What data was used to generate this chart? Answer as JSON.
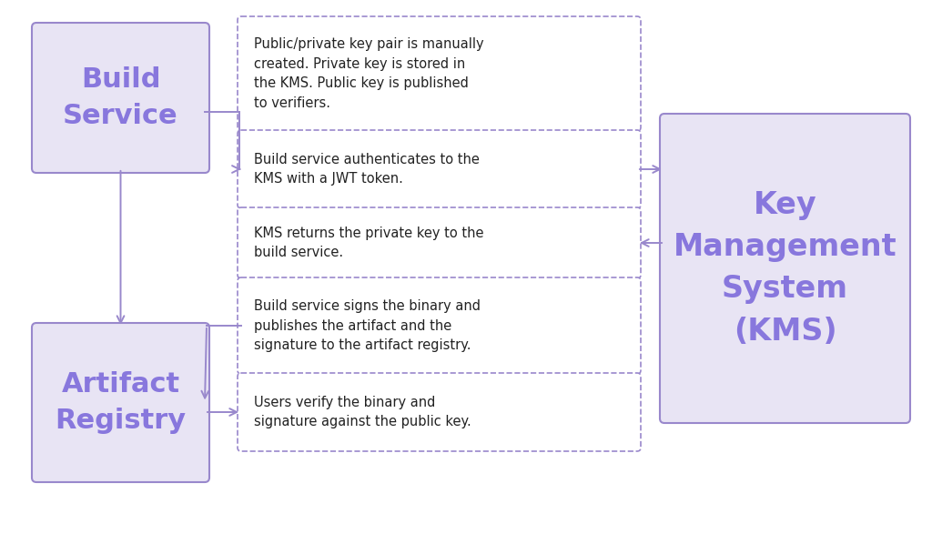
{
  "background_color": "#ffffff",
  "solid_box_fill": "#e8e4f4",
  "solid_box_edge": "#9988cc",
  "dashed_box_fill": "#ffffff",
  "dashed_box_edge": "#9988cc",
  "arrow_color": "#9988cc",
  "bold_text_color": "#8877dd",
  "normal_text_color": "#222222",
  "build_service_label": "Build\nService",
  "artifact_registry_label": "Artifact\nRegistry",
  "kms_label": "Key\nManagement\nSystem\n(KMS)",
  "step_texts": [
    "Public/private key pair is manually\ncreated. Private key is stored in\nthe KMS. Public key is published\nto verifiers.",
    "Build service authenticates to the\nKMS with a JWT token.",
    "KMS returns the private key to the\nbuild service.",
    "Build service signs the binary and\npublishes the artifact and the\nsignature to the artifact registry.",
    "Users verify the binary and\nsignature against the public key."
  ]
}
